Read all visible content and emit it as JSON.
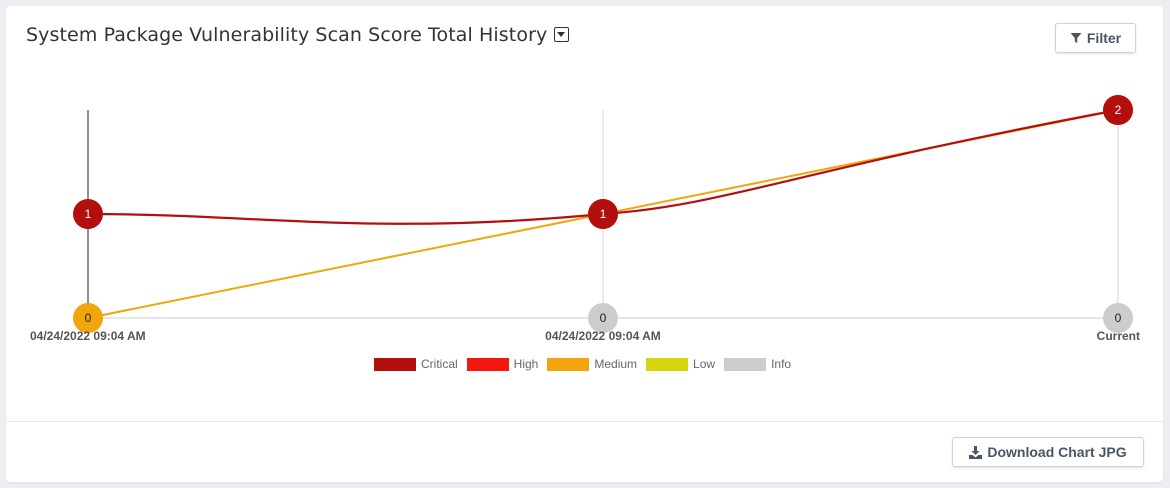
{
  "header": {
    "title": "System Package Vulnerability Scan Score Total History",
    "filter_label": "Filter",
    "filter_icon": "filter-icon",
    "dropdown_icon": "caret-square-down-icon"
  },
  "footer": {
    "download_label": "Download Chart JPG",
    "download_icon": "download-icon"
  },
  "chart_data": {
    "type": "line",
    "title": "System Package Vulnerability Scan Score Total History",
    "categories": [
      "04/24/2022 09:04 AM",
      "04/24/2022 09:04 AM",
      "Current"
    ],
    "ylim": [
      0,
      2
    ],
    "grid": true,
    "legend_position": "bottom-center",
    "series": [
      {
        "name": "Critical",
        "color": "#b30f0f",
        "values": [
          1,
          1,
          2
        ]
      },
      {
        "name": "High",
        "color": "#f5160f",
        "values": [
          null,
          null,
          null
        ]
      },
      {
        "name": "Medium",
        "color": "#f2a50c",
        "values": [
          0,
          1,
          2
        ]
      },
      {
        "name": "Low",
        "color": "#d4d40f",
        "values": [
          null,
          null,
          null
        ]
      },
      {
        "name": "Info",
        "color": "#cccccc",
        "values": [
          null,
          0,
          0
        ]
      }
    ]
  }
}
